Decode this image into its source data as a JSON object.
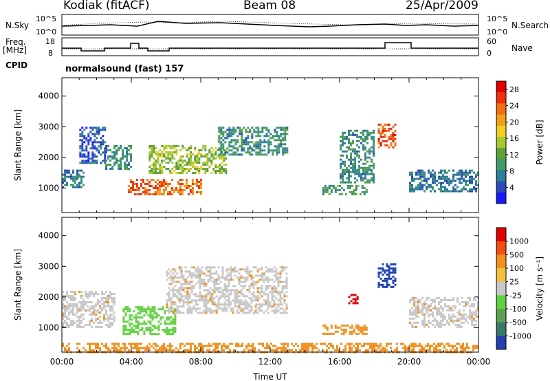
{
  "header": {
    "site": "Kodiak (fitACF)",
    "beam": "Beam 08",
    "date": "25/Apr/2009"
  },
  "noise_panel": {
    "left_label": "N.Sky",
    "right_label": "N.Search",
    "left_ticks": [
      "10^5",
      "10^0"
    ],
    "right_ticks": [
      "10^5",
      "10^0"
    ]
  },
  "freq_panel": {
    "left_label_1": "Freq.",
    "left_label_2": "[MHz]",
    "right_label": "Nave",
    "left_ticks": [
      "18",
      "8"
    ],
    "right_ticks": [
      "60",
      "0"
    ]
  },
  "cpid": {
    "label": "CPID",
    "program": "normalsound (fast) 157"
  },
  "chart_data": [
    {
      "type": "heatmap",
      "panel": "power",
      "ylabel": "Slant Range [km]",
      "xlabel": "",
      "yticks": [
        "1000",
        "2000",
        "3000",
        "4000"
      ],
      "ylim": [
        200,
        4600
      ],
      "xlim": [
        0,
        24
      ],
      "colorbar": {
        "label": "Power [dB]",
        "ticks": [
          "4",
          "8",
          "12",
          "16",
          "20",
          "24",
          "28"
        ],
        "range": [
          0,
          30
        ],
        "colors": [
          "#1a1aff",
          "#2b4cb8",
          "#2e7d9a",
          "#3f9a6a",
          "#5fa03a",
          "#a8c832",
          "#f0d020",
          "#f0a018",
          "#f07010",
          "#f03010",
          "#e00000"
        ]
      },
      "echo_regions": [
        {
          "t": [
            0.0,
            1.2
          ],
          "r": [
            1000,
            1600
          ],
          "level": 6
        },
        {
          "t": [
            1.0,
            2.5
          ],
          "r": [
            1800,
            3000
          ],
          "level": 4
        },
        {
          "t": [
            2.5,
            4.0
          ],
          "r": [
            1600,
            2400
          ],
          "level": 8
        },
        {
          "t": [
            3.8,
            8.0
          ],
          "r": [
            800,
            1300
          ],
          "level": 24
        },
        {
          "t": [
            5.0,
            9.5
          ],
          "r": [
            1500,
            2400
          ],
          "level": 14
        },
        {
          "t": [
            9.0,
            13.0
          ],
          "r": [
            2100,
            3000
          ],
          "level": 8
        },
        {
          "t": [
            15.0,
            17.5
          ],
          "r": [
            800,
            1100
          ],
          "level": 10
        },
        {
          "t": [
            16.0,
            18.0
          ],
          "r": [
            1200,
            2900
          ],
          "level": 8
        },
        {
          "t": [
            18.2,
            19.2
          ],
          "r": [
            2300,
            3100
          ],
          "level": 26
        },
        {
          "t": [
            20.0,
            24.0
          ],
          "r": [
            900,
            1600
          ],
          "level": 6
        }
      ]
    },
    {
      "type": "heatmap",
      "panel": "velocity",
      "ylabel": "Slant Range [km]",
      "xlabel": "Time UT",
      "xticks": [
        "00:00",
        "04:00",
        "08:00",
        "12:00",
        "16:00",
        "20:00",
        "00:00"
      ],
      "yticks": [
        "1000",
        "2000",
        "3000",
        "4000"
      ],
      "ylim": [
        200,
        4600
      ],
      "xlim": [
        0,
        24
      ],
      "colorbar": {
        "label": "Velocity [m s⁻¹]",
        "ticks": [
          "1000",
          "500",
          "100",
          "25",
          "-25",
          "-100",
          "-500",
          "-1000"
        ],
        "colors": [
          "#2040b0",
          "#3a7a6a",
          "#5fa050",
          "#60d040",
          "#c8c8c8",
          "#f0c040",
          "#f09020",
          "#f05010",
          "#e00000"
        ]
      },
      "echo_regions": [
        {
          "t": [
            0.0,
            3.0
          ],
          "r": [
            1000,
            2200
          ],
          "class": "gray"
        },
        {
          "t": [
            3.5,
            6.5
          ],
          "r": [
            800,
            1700
          ],
          "class": "green"
        },
        {
          "t": [
            6.0,
            13.0
          ],
          "r": [
            1500,
            3000
          ],
          "class": "gray"
        },
        {
          "t": [
            15.0,
            17.5
          ],
          "r": [
            800,
            1100
          ],
          "class": "orange"
        },
        {
          "t": [
            16.5,
            17.0
          ],
          "r": [
            1800,
            2100
          ],
          "class": "red"
        },
        {
          "t": [
            18.2,
            19.2
          ],
          "r": [
            2300,
            3100
          ],
          "class": "blue"
        },
        {
          "t": [
            20.0,
            24.0
          ],
          "r": [
            1000,
            2000
          ],
          "class": "gray"
        },
        {
          "t": [
            0.0,
            24.0
          ],
          "r": [
            200,
            500
          ],
          "class": "orange"
        }
      ]
    }
  ]
}
